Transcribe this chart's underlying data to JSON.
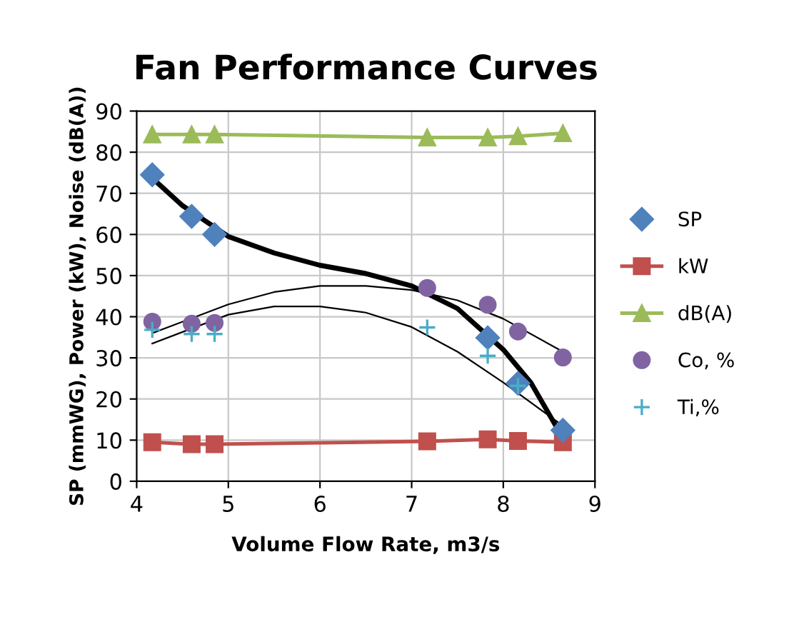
{
  "chart_data": {
    "type": "scatter",
    "title": "Fan Performance Curves",
    "xlabel": "Volume Flow Rate, m3/s",
    "ylabel": "SP (mmWG), Power (kW), Noise (dB(A))",
    "x": [
      4.17,
      4.6,
      4.85,
      7.17,
      7.83,
      8.16,
      8.65
    ],
    "xlim": [
      4,
      9
    ],
    "xticks": [
      4,
      5,
      6,
      7,
      8,
      9
    ],
    "ylim": [
      0,
      90
    ],
    "yticks": [
      0,
      10,
      20,
      30,
      40,
      50,
      60,
      70,
      80,
      90
    ],
    "grid": true,
    "legend": "right",
    "series": [
      {
        "name": "SP",
        "color": "#4f81bd",
        "marker": "diamond",
        "values": [
          74.5,
          64.4,
          60.0,
          null,
          34.9,
          23.8,
          12.4
        ]
      },
      {
        "name": "kW",
        "type": "line",
        "color": "#c0504d",
        "marker": "square",
        "line_style": "solid",
        "values": [
          9.5,
          9.0,
          9.0,
          9.7,
          10.2,
          9.8,
          9.5
        ]
      },
      {
        "name": "dB(A)",
        "type": "line",
        "color": "#9bbb59",
        "marker": "triangle",
        "line_style": "solid",
        "values": [
          84.3,
          84.3,
          84.3,
          83.6,
          83.6,
          83.9,
          84.6
        ]
      },
      {
        "name": "Co, %",
        "color": "#8064a2",
        "marker": "circle",
        "values": [
          38.8,
          38.3,
          38.5,
          47.0,
          42.9,
          36.4,
          30.1
        ]
      },
      {
        "name": "Ti,%",
        "color": "#4bacc6",
        "marker": "cross",
        "values": [
          36.8,
          35.8,
          35.8,
          37.4,
          30.5,
          23.2,
          null
        ]
      },
      {
        "type": "line",
        "color": "#000000",
        "marker": "none",
        "line_style": "solid",
        "x": [
          4.17,
          4.5,
          5,
          5.5,
          6,
          6.5,
          7,
          7.5,
          8,
          8.3,
          8.65
        ],
        "values": [
          73.7,
          67,
          59.5,
          55.5,
          52.5,
          50.5,
          47.5,
          42,
          32,
          24,
          10.5
        ]
      },
      {
        "type": "line",
        "color": "#000000",
        "marker": "none",
        "line_style": "solid",
        "x": [
          4.17,
          5,
          5.5,
          6,
          6.5,
          7,
          7.5,
          8,
          8.65
        ],
        "values": [
          36,
          43,
          46,
          47.5,
          47.5,
          46.5,
          44,
          39.5,
          31.5
        ]
      },
      {
        "type": "line",
        "color": "#000000",
        "marker": "none",
        "line_style": "solid",
        "x": [
          4.17,
          5,
          5.5,
          6,
          6.5,
          7,
          7.5,
          8,
          8.65
        ],
        "values": [
          33.5,
          40.5,
          42.5,
          42.5,
          41,
          37.5,
          31.5,
          24,
          13.5
        ]
      }
    ]
  }
}
